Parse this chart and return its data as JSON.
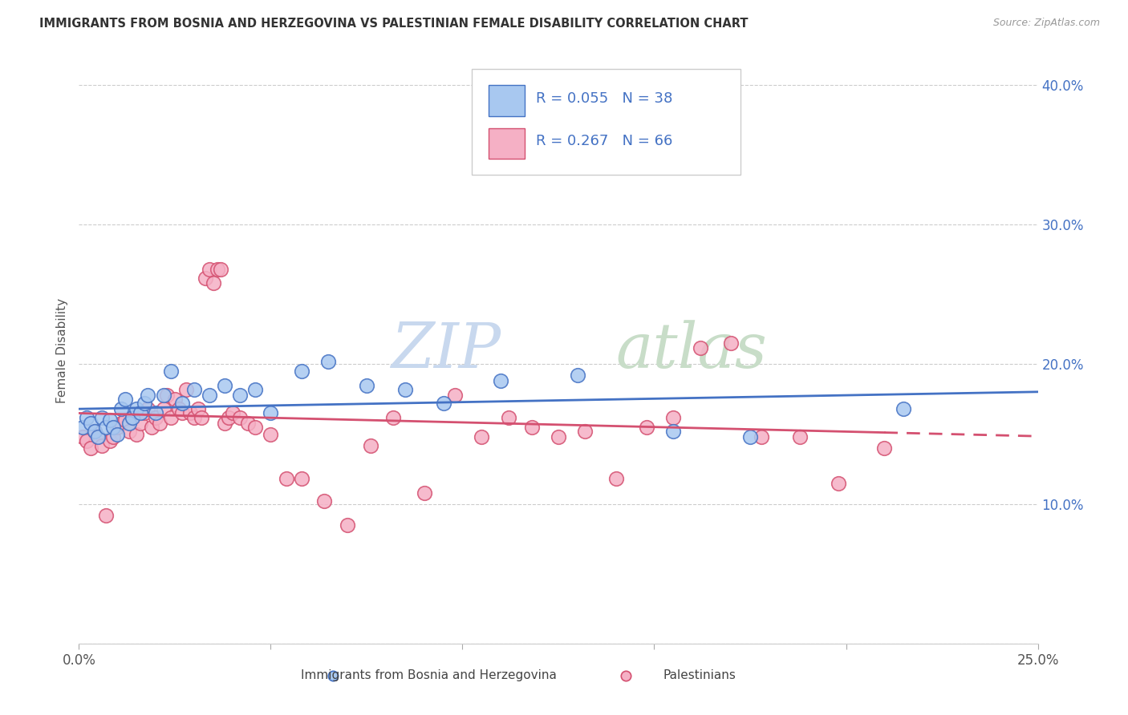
{
  "title": "IMMIGRANTS FROM BOSNIA AND HERZEGOVINA VS PALESTINIAN FEMALE DISABILITY CORRELATION CHART",
  "source": "Source: ZipAtlas.com",
  "ylabel": "Female Disability",
  "legend_label_1": "Immigrants from Bosnia and Herzegovina",
  "legend_label_2": "Palestinians",
  "r1": 0.055,
  "n1": 38,
  "r2": 0.267,
  "n2": 66,
  "xlim": [
    0.0,
    0.25
  ],
  "ylim": [
    0.0,
    0.42
  ],
  "xticks": [
    0.0,
    0.05,
    0.1,
    0.15,
    0.2,
    0.25
  ],
  "yticks": [
    0.0,
    0.1,
    0.2,
    0.3,
    0.4
  ],
  "color_blue": "#A8C8F0",
  "color_pink": "#F5B0C5",
  "color_blue_line": "#4472C4",
  "color_pink_line": "#D45070",
  "background": "#FFFFFF",
  "blue_x": [
    0.001,
    0.002,
    0.003,
    0.004,
    0.005,
    0.006,
    0.007,
    0.008,
    0.009,
    0.01,
    0.011,
    0.012,
    0.013,
    0.014,
    0.015,
    0.016,
    0.017,
    0.018,
    0.02,
    0.022,
    0.024,
    0.027,
    0.03,
    0.034,
    0.038,
    0.042,
    0.046,
    0.05,
    0.058,
    0.065,
    0.075,
    0.085,
    0.095,
    0.11,
    0.13,
    0.155,
    0.175,
    0.215
  ],
  "blue_y": [
    0.155,
    0.162,
    0.158,
    0.152,
    0.148,
    0.162,
    0.155,
    0.16,
    0.155,
    0.15,
    0.168,
    0.175,
    0.158,
    0.162,
    0.168,
    0.165,
    0.172,
    0.178,
    0.165,
    0.178,
    0.195,
    0.172,
    0.182,
    0.178,
    0.185,
    0.178,
    0.182,
    0.165,
    0.195,
    0.202,
    0.185,
    0.182,
    0.172,
    0.188,
    0.192,
    0.152,
    0.148,
    0.168
  ],
  "pink_x": [
    0.001,
    0.002,
    0.003,
    0.004,
    0.005,
    0.006,
    0.007,
    0.008,
    0.009,
    0.01,
    0.011,
    0.012,
    0.013,
    0.014,
    0.015,
    0.016,
    0.017,
    0.018,
    0.019,
    0.02,
    0.021,
    0.022,
    0.023,
    0.024,
    0.025,
    0.026,
    0.027,
    0.028,
    0.029,
    0.03,
    0.031,
    0.032,
    0.033,
    0.034,
    0.035,
    0.036,
    0.037,
    0.038,
    0.039,
    0.04,
    0.042,
    0.044,
    0.046,
    0.05,
    0.054,
    0.058,
    0.064,
    0.07,
    0.076,
    0.082,
    0.09,
    0.098,
    0.105,
    0.112,
    0.118,
    0.125,
    0.132,
    0.14,
    0.148,
    0.155,
    0.162,
    0.17,
    0.178,
    0.188,
    0.198,
    0.21
  ],
  "pink_y": [
    0.148,
    0.145,
    0.14,
    0.152,
    0.148,
    0.142,
    0.092,
    0.145,
    0.148,
    0.155,
    0.158,
    0.16,
    0.152,
    0.162,
    0.15,
    0.158,
    0.165,
    0.168,
    0.155,
    0.162,
    0.158,
    0.168,
    0.178,
    0.162,
    0.175,
    0.168,
    0.165,
    0.182,
    0.165,
    0.162,
    0.168,
    0.162,
    0.262,
    0.268,
    0.258,
    0.268,
    0.268,
    0.158,
    0.162,
    0.165,
    0.162,
    0.158,
    0.155,
    0.15,
    0.118,
    0.118,
    0.102,
    0.085,
    0.142,
    0.162,
    0.108,
    0.178,
    0.148,
    0.162,
    0.155,
    0.148,
    0.152,
    0.118,
    0.155,
    0.162,
    0.212,
    0.215,
    0.148,
    0.148,
    0.115,
    0.14
  ]
}
